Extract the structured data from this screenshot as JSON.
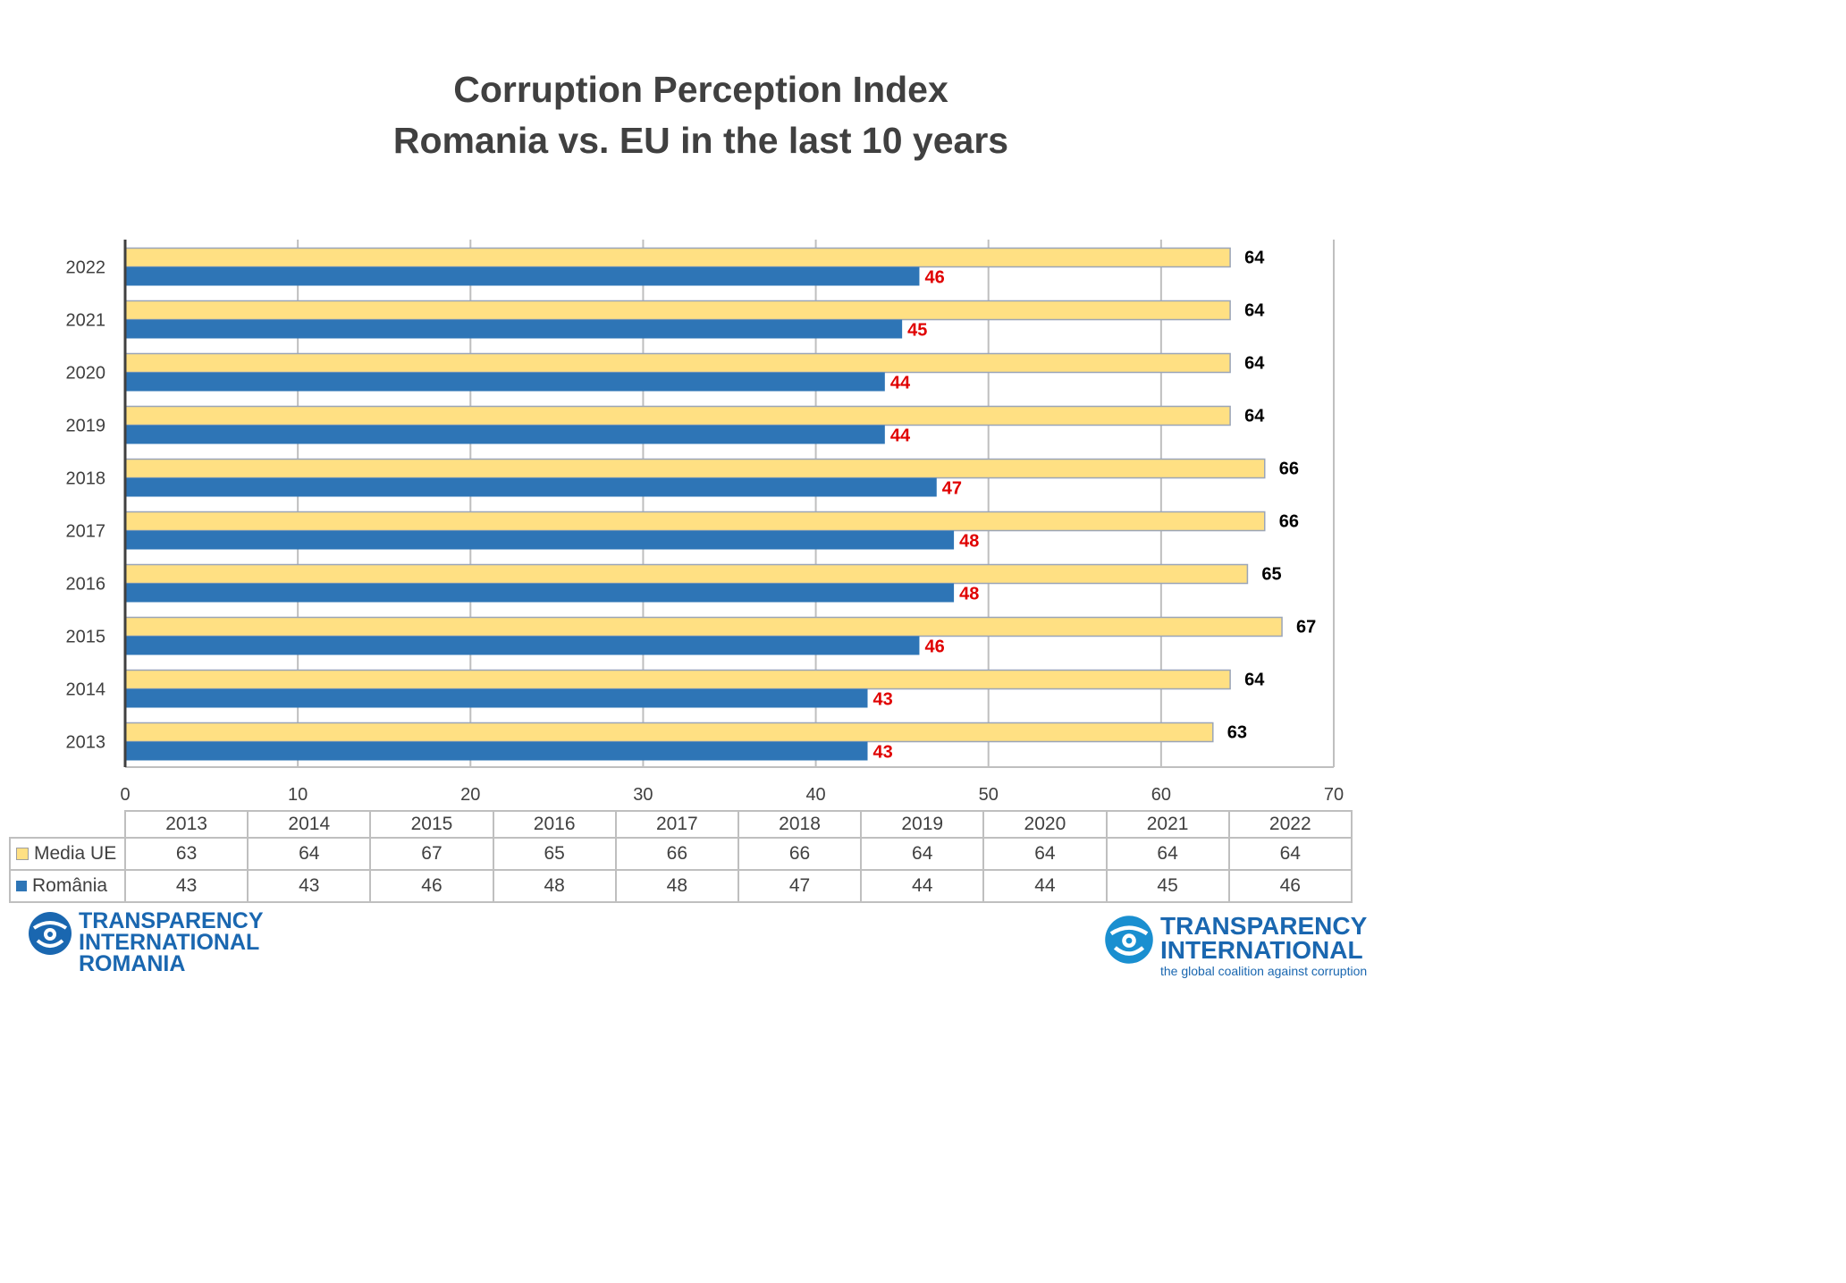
{
  "title_line1": "Corruption Perception Index",
  "title_line2": "Romania vs. EU in the last 10 years",
  "colors": {
    "eu_fill": "#ffe083",
    "eu_border": "#9aa5b8",
    "romania_fill": "#2e75b6",
    "eu_label": "#000000",
    "romania_label": "#e00000",
    "gridline": "#bfbfbf",
    "logo_blue": "#1a67b0"
  },
  "chart_data": {
    "type": "bar",
    "orientation": "horizontal",
    "categories": [
      "2013",
      "2014",
      "2015",
      "2016",
      "2017",
      "2018",
      "2019",
      "2020",
      "2021",
      "2022"
    ],
    "series": [
      {
        "name": "Media UE",
        "values": [
          63,
          64,
          67,
          65,
          66,
          66,
          64,
          64,
          64,
          64
        ]
      },
      {
        "name": "România",
        "values": [
          43,
          43,
          46,
          48,
          48,
          47,
          44,
          44,
          45,
          46
        ]
      }
    ],
    "xlim": [
      0,
      70
    ],
    "xticks": [
      "0",
      "10",
      "20",
      "30",
      "40",
      "50",
      "60",
      "70"
    ],
    "grid": "vertical",
    "legend": "data table below chart",
    "data_labels": true
  },
  "logos": {
    "left": {
      "icon": "ti-globe-icon",
      "lines": [
        "TRANSPARENCY",
        "INTERNATIONAL",
        "ROMANIA"
      ]
    },
    "right": {
      "icon": "ti-globe-icon",
      "lines": [
        "TRANSPARENCY",
        "INTERNATIONAL"
      ],
      "tagline": "the global coalition against corruption"
    }
  }
}
